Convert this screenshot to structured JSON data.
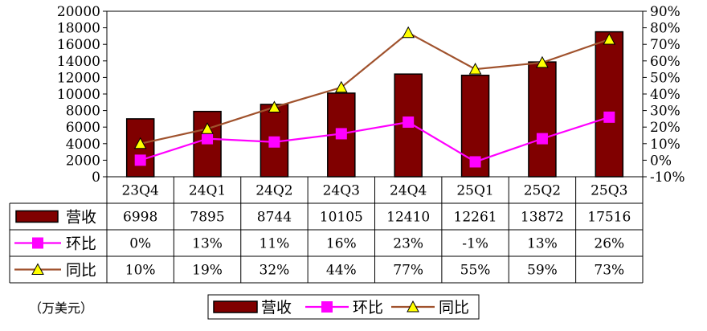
{
  "chart_data": {
    "type": "bar",
    "categories": [
      "23Q4",
      "24Q1",
      "24Q2",
      "24Q3",
      "24Q4",
      "25Q1",
      "25Q2",
      "25Q3"
    ],
    "series": [
      {
        "name": "营收",
        "kind": "bar",
        "axis": "left",
        "values": [
          6998,
          7895,
          8744,
          10105,
          12410,
          12261,
          13872,
          17516
        ],
        "labels": [
          "6998",
          "7895",
          "8744",
          "10105",
          "12410",
          "12261",
          "13872",
          "17516"
        ],
        "color": "#800000"
      },
      {
        "name": "环比",
        "kind": "line",
        "axis": "right",
        "marker": "square",
        "values": [
          0,
          13,
          11,
          16,
          23,
          -1,
          13,
          26
        ],
        "labels": [
          "0%",
          "13%",
          "11%",
          "16%",
          "23%",
          "-1%",
          "13%",
          "26%"
        ],
        "color": "#ff00ff"
      },
      {
        "name": "同比",
        "kind": "line",
        "axis": "right",
        "marker": "triangle",
        "values": [
          10,
          19,
          32,
          44,
          77,
          55,
          59,
          73
        ],
        "labels": [
          "10%",
          "19%",
          "32%",
          "44%",
          "77%",
          "55%",
          "59%",
          "73%"
        ],
        "color": "#a0522d"
      }
    ],
    "y_left": {
      "ylim": [
        0,
        20000
      ],
      "ticks": [
        0,
        2000,
        4000,
        6000,
        8000,
        10000,
        12000,
        14000,
        16000,
        18000,
        20000
      ]
    },
    "y_right": {
      "ylim": [
        -10,
        90
      ],
      "ticks": [
        "-10%",
        "0%",
        "10%",
        "20%",
        "30%",
        "40%",
        "50%",
        "60%",
        "70%",
        "80%",
        "90%"
      ]
    },
    "unit_label": "（万美元）",
    "legend_position": "bottom-center",
    "grid": false,
    "data_table": true
  }
}
